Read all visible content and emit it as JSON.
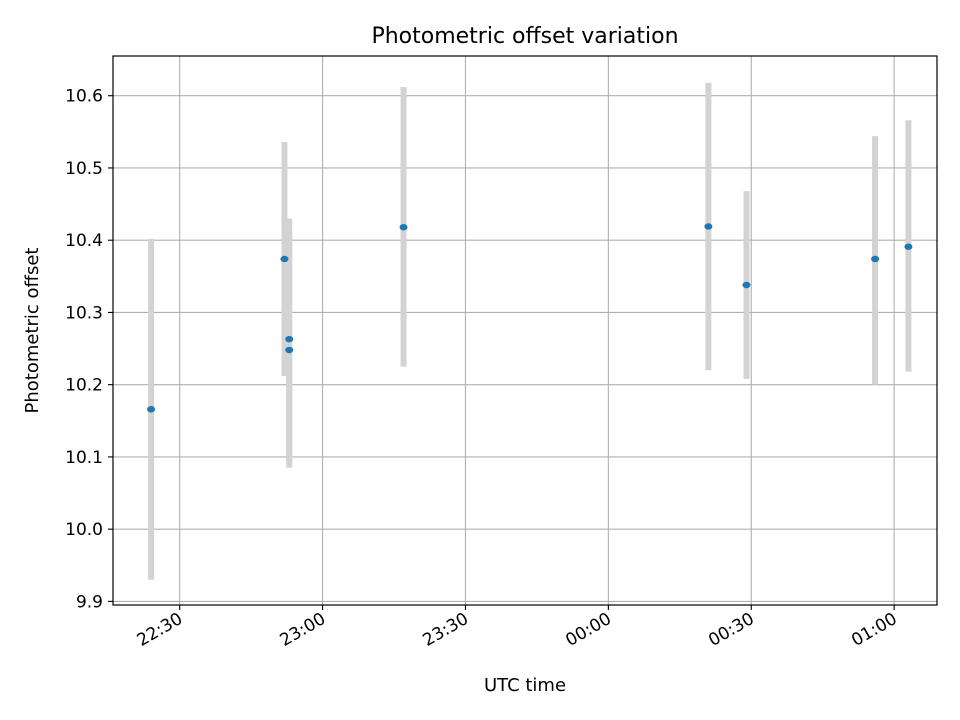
{
  "chart_data": {
    "type": "scatter",
    "title": "Photometric offset variation",
    "xlabel": "UTC time",
    "ylabel": "Photometric offset",
    "grid": true,
    "legend": "none",
    "xlim": [
      "22:16",
      "01:09"
    ],
    "ylim": [
      9.895,
      10.655
    ],
    "x_ticks": [
      "22:30",
      "23:00",
      "23:30",
      "00:00",
      "00:30",
      "01:00"
    ],
    "y_ticks": [
      "9.9",
      "10.0",
      "10.1",
      "10.2",
      "10.3",
      "10.4",
      "10.5",
      "10.6"
    ],
    "series": [
      {
        "marker_color": "#1f77b4",
        "errorbar_color": "#d3d3d3",
        "points": [
          {
            "x": "22:24",
            "y": 10.166,
            "yerr_low": 9.93,
            "yerr_high": 10.402
          },
          {
            "x": "22:52",
            "y": 10.374,
            "yerr_low": 10.212,
            "yerr_high": 10.536
          },
          {
            "x": "22:53",
            "y": 10.263,
            "yerr_low": 10.095,
            "yerr_high": 10.43
          },
          {
            "x": "22:53",
            "y": 10.248,
            "yerr_low": 10.085,
            "yerr_high": 10.412
          },
          {
            "x": "23:17",
            "y": 10.418,
            "yerr_low": 10.225,
            "yerr_high": 10.612
          },
          {
            "x": "00:21",
            "y": 10.419,
            "yerr_low": 10.22,
            "yerr_high": 10.618
          },
          {
            "x": "00:29",
            "y": 10.338,
            "yerr_low": 10.208,
            "yerr_high": 10.468
          },
          {
            "x": "00:56",
            "y": 10.374,
            "yerr_low": 10.2,
            "yerr_high": 10.544
          },
          {
            "x": "01:03",
            "y": 10.391,
            "yerr_low": 10.218,
            "yerr_high": 10.566
          }
        ]
      }
    ]
  }
}
